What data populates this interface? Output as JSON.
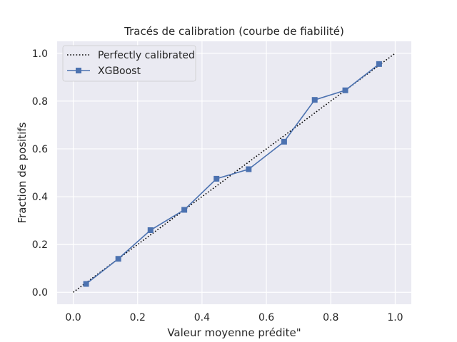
{
  "chart_data": {
    "type": "line",
    "title": "Tracés de calibration (courbe de fiabilité)",
    "xlabel": "Valeur moyenne prédite\"",
    "ylabel": "Fraction de positifs",
    "xlim": [
      -0.05,
      1.05
    ],
    "ylim": [
      -0.05,
      1.05
    ],
    "xticks": [
      "0.0",
      "0.2",
      "0.4",
      "0.6",
      "0.8",
      "1.0"
    ],
    "yticks": [
      "0.0",
      "0.2",
      "0.4",
      "0.6",
      "0.8",
      "1.0"
    ],
    "grid": true,
    "legend_position": "upper-left",
    "series": [
      {
        "name": "Perfectly calibrated",
        "style": "dotted",
        "color": "#000000",
        "x": [
          0,
          1
        ],
        "y": [
          0,
          1
        ]
      },
      {
        "name": "XGBoost",
        "style": "line-square-markers",
        "color": "#4c72b0",
        "x": [
          0.04,
          0.14,
          0.24,
          0.345,
          0.445,
          0.545,
          0.655,
          0.75,
          0.845,
          0.95
        ],
        "y": [
          0.035,
          0.14,
          0.26,
          0.345,
          0.475,
          0.515,
          0.63,
          0.805,
          0.845,
          0.955
        ]
      }
    ],
    "colors": {
      "background": "#eaeaf2",
      "grid": "#ffffff",
      "accent": "#4c72b0"
    }
  }
}
